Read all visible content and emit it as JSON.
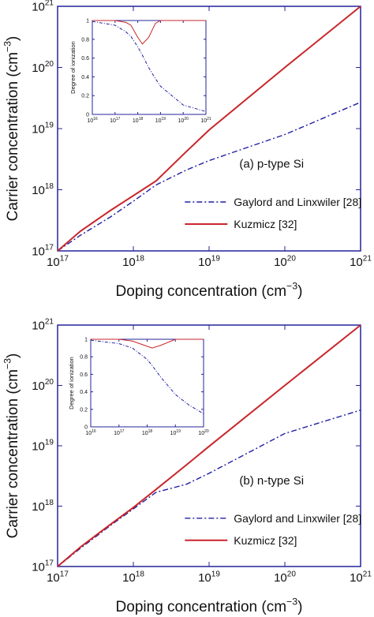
{
  "chart_data": [
    {
      "type": "line",
      "xlog": true,
      "ylog": true,
      "xlim": [
        1e+17,
        1e+21
      ],
      "ylim": [
        1e+17,
        1e+21
      ],
      "xticks": [
        {
          "value": 1e+17,
          "label": "10",
          "sup": "17"
        },
        {
          "value": 1e+18,
          "label": "10",
          "sup": "18"
        },
        {
          "value": 1e+19,
          "label": "10",
          "sup": "19"
        },
        {
          "value": 1e+20,
          "label": "10",
          "sup": "20"
        },
        {
          "value": 1e+21,
          "label": "10",
          "sup": "21"
        }
      ],
      "yticks": [
        {
          "value": 1e+17,
          "label": "10",
          "sup": "17"
        },
        {
          "value": 1e+18,
          "label": "10",
          "sup": "18"
        },
        {
          "value": 1e+19,
          "label": "10",
          "sup": "19"
        },
        {
          "value": 1e+20,
          "label": "10",
          "sup": "20"
        },
        {
          "value": 1e+21,
          "label": "10",
          "sup": "21"
        }
      ],
      "xlabel": {
        "text": "Doping  concentration (cm",
        "sup": "−3",
        "tail": ")"
      },
      "ylabel": {
        "text": "Carrier concentration (cm",
        "sup": "−3",
        "tail": ")"
      },
      "annotation": "(a) p-type Si",
      "legend": true,
      "x": [
        1e+17,
        2e+17,
        5e+17,
        1e+18,
        2e+18,
        5e+18,
        1e+19,
        1e+20,
        1e+21
      ],
      "series": [
        {
          "name": "Gaylord and Linxwiler [28]",
          "color": "#1f1fa3",
          "linestyle": "dash-dot",
          "values": [
            1e+17,
            1.8e+17,
            3.6e+17,
            6.5e+17,
            1.2e+18,
            2.1e+18,
            3e+18,
            8e+18,
            2.7e+19
          ]
        },
        {
          "name": "Kuzmicz [32]",
          "color": "#c8262b",
          "linestyle": "solid",
          "values": [
            1e+17,
            2.1e+17,
            4.6e+17,
            8e+17,
            1.4e+18,
            4.2e+18,
            9.5e+18,
            1e+20,
            1e+21
          ]
        }
      ]
    },
    {
      "type": "line",
      "xlog": true,
      "ylog": false,
      "xlim": [
        1e+16,
        1e+21
      ],
      "ylim": [
        0,
        1
      ],
      "xticks": [
        {
          "value": 1e+16,
          "label": "10",
          "sup": "16"
        },
        {
          "value": 1e+17,
          "label": "10",
          "sup": "17"
        },
        {
          "value": 1e+18,
          "label": "10",
          "sup": "18"
        },
        {
          "value": 1e+19,
          "label": "10",
          "sup": "19"
        },
        {
          "value": 1e+20,
          "label": "10",
          "sup": "20"
        },
        {
          "value": 1e+21,
          "label": "10",
          "sup": "21"
        }
      ],
      "yticks": [
        0,
        0.2,
        0.4,
        0.6,
        0.8,
        1
      ],
      "ylabel": {
        "text": "Degree of ionization"
      },
      "legend": false,
      "x": [
        1e+16,
        1e+17,
        3e+17,
        5e+17,
        1e+18,
        1.6e+18,
        3e+18,
        6e+18,
        1e+19,
        1e+20,
        1e+21
      ],
      "series": [
        {
          "color": "#1f1fa3",
          "linestyle": "dash-dot",
          "values": [
            0.99,
            0.95,
            0.88,
            0.83,
            0.72,
            0.63,
            0.5,
            0.38,
            0.3,
            0.1,
            0.03
          ]
        },
        {
          "color": "#c8262b",
          "linestyle": "solid",
          "values": [
            1,
            1,
            0.98,
            0.95,
            0.82,
            0.75,
            0.82,
            0.97,
            1,
            1,
            1
          ]
        }
      ]
    },
    {
      "type": "line",
      "xlog": true,
      "ylog": true,
      "xlim": [
        1e+17,
        1e+21
      ],
      "ylim": [
        1e+17,
        1e+21
      ],
      "xticks": [
        {
          "value": 1e+17,
          "label": "10",
          "sup": "17"
        },
        {
          "value": 1e+18,
          "label": "10",
          "sup": "18"
        },
        {
          "value": 1e+19,
          "label": "10",
          "sup": "19"
        },
        {
          "value": 1e+20,
          "label": "10",
          "sup": "20"
        },
        {
          "value": 1e+21,
          "label": "10",
          "sup": "21"
        }
      ],
      "yticks": [
        {
          "value": 1e+17,
          "label": "10",
          "sup": "17"
        },
        {
          "value": 1e+18,
          "label": "10",
          "sup": "18"
        },
        {
          "value": 1e+19,
          "label": "10",
          "sup": "19"
        },
        {
          "value": 1e+20,
          "label": "10",
          "sup": "20"
        },
        {
          "value": 1e+21,
          "label": "10",
          "sup": "21"
        }
      ],
      "xlabel": {
        "text": "Doping concentration (cm",
        "sup": "−3",
        "tail": ")"
      },
      "ylabel": {
        "text": "Carrier concentration (cm",
        "sup": "−3",
        "tail": ")"
      },
      "annotation": "(b) n-type Si",
      "legend": true,
      "x": [
        1e+17,
        2e+17,
        5e+17,
        1e+18,
        2e+18,
        5e+18,
        1e+19,
        1e+20,
        1e+21
      ],
      "series": [
        {
          "name": "Gaylord and Linxwiler [28]",
          "color": "#1f1fa3",
          "linestyle": "dash-dot",
          "values": [
            1e+17,
            2e+17,
            4.8e+17,
            9e+17,
            1.7e+18,
            2.3e+18,
            3.5e+18,
            1.6e+19,
            3.9e+19
          ]
        },
        {
          "name": "Kuzmicz [32]",
          "color": "#c8262b",
          "linestyle": "solid",
          "values": [
            1e+17,
            2.1e+17,
            5e+17,
            9.5e+17,
            1.9e+18,
            4.8e+18,
            9.8e+18,
            1e+20,
            1e+21
          ]
        }
      ]
    },
    {
      "type": "line",
      "xlog": true,
      "ylog": false,
      "xlim": [
        1e+16,
        1e+20
      ],
      "ylim": [
        0,
        1
      ],
      "xticks": [
        {
          "value": 1e+16,
          "label": "10",
          "sup": "16"
        },
        {
          "value": 1e+17,
          "label": "10",
          "sup": "17"
        },
        {
          "value": 1e+18,
          "label": "10",
          "sup": "18"
        },
        {
          "value": 1e+19,
          "label": "10",
          "sup": "19"
        },
        {
          "value": 1e+20,
          "label": "10",
          "sup": "20"
        }
      ],
      "yticks": [
        0,
        0.2,
        0.4,
        0.6,
        0.8,
        1
      ],
      "ylabel": {
        "text": "Degree of ionization"
      },
      "legend": false,
      "x": [
        1e+16,
        1e+17,
        3e+17,
        1e+18,
        1.5e+18,
        3e+18,
        1e+19,
        3e+19,
        1e+20
      ],
      "series": [
        {
          "color": "#1f1fa3",
          "linestyle": "dash-dot",
          "values": [
            0.99,
            0.95,
            0.9,
            0.77,
            0.7,
            0.57,
            0.37,
            0.25,
            0.15
          ]
        },
        {
          "color": "#c8262b",
          "linestyle": "solid",
          "values": [
            1,
            1,
            0.98,
            0.92,
            0.9,
            0.93,
            1,
            1,
            1
          ]
        }
      ]
    }
  ]
}
